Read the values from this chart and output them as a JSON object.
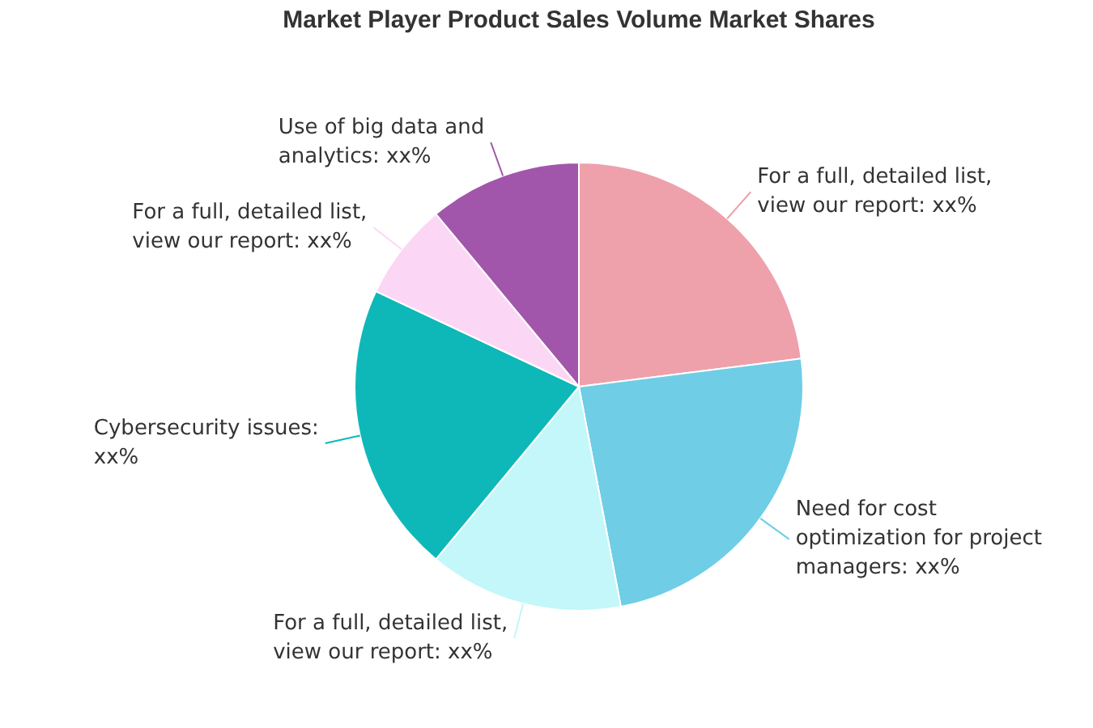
{
  "chart_data": {
    "type": "pie",
    "title": "Market Player Product Sales Volume Market Shares",
    "categories": [
      "For a full, detailed list, view our report: xx%",
      "Need for cost optimization for project managers: xx%",
      "For a full, detailed list, view our report: xx%",
      "Cybersecurity issues: xx%",
      "For a full, detailed list, view our report: xx%",
      "Use of big data and analytics: xx%"
    ],
    "values": [
      23,
      24,
      14,
      21,
      7,
      11
    ],
    "colors": [
      "#eea1ab",
      "#6fcde6",
      "#c3f7f9",
      "#0fb8b8",
      "#fbd7f5",
      "#a256ab"
    ],
    "legend": false
  }
}
